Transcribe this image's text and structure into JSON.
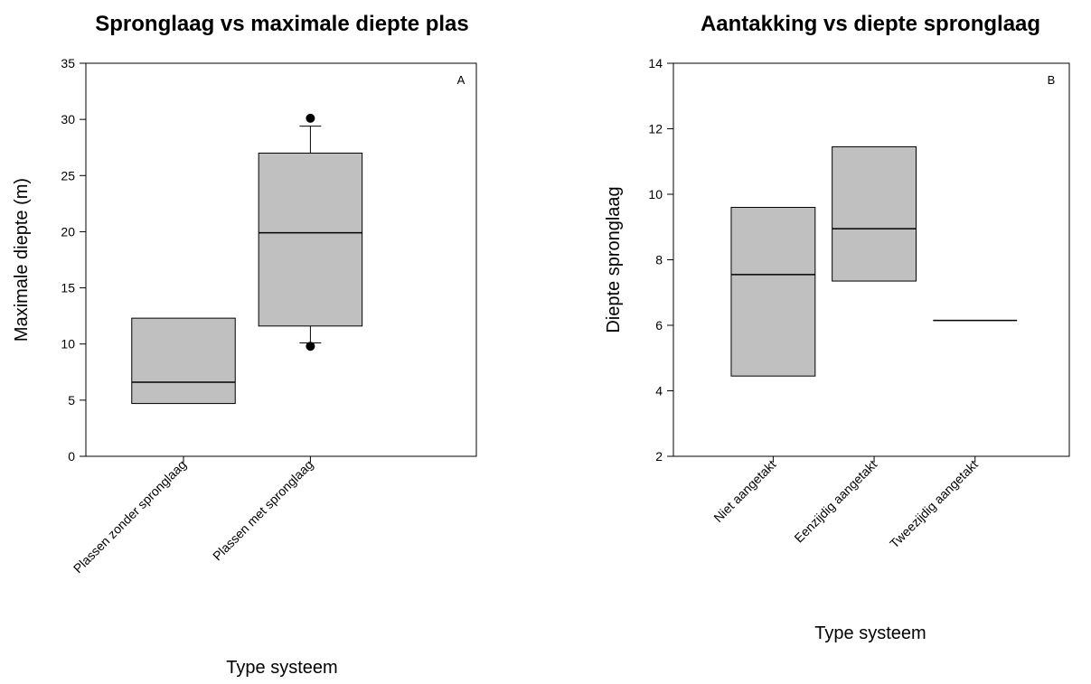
{
  "chart_data": [
    {
      "type": "box",
      "title": "Spronglaag vs maximale diepte plas",
      "panel_label": "A",
      "xlabel": "Type systeem",
      "ylabel": "Maximale diepte (m)",
      "ylim": [
        0,
        35
      ],
      "yticks": [
        0,
        5,
        10,
        15,
        20,
        25,
        30,
        35
      ],
      "grid": false,
      "box_color": "#c0c0c0",
      "categories": [
        "Plassen zonder spronglaag",
        "Plassen met spronglaag"
      ],
      "boxes": [
        {
          "q1": 4.7,
          "median": 6.6,
          "q3": 12.3
        },
        {
          "q1": 11.6,
          "median": 19.9,
          "q3": 27.0,
          "whisker_low": 10.1,
          "whisker_high": 29.4,
          "outliers": [
            9.8,
            30.1
          ]
        }
      ]
    },
    {
      "type": "box",
      "title": "Aantakking vs diepte spronglaag",
      "panel_label": "B",
      "xlabel": "Type systeem",
      "ylabel": "Diepte spronglaag",
      "ylim": [
        2,
        14
      ],
      "yticks": [
        2,
        4,
        6,
        8,
        10,
        12,
        14
      ],
      "grid": false,
      "box_color": "#c0c0c0",
      "categories": [
        "Niet aangetakt",
        "Eenzijdig aangetakt",
        "Tweezijdig aangetakt"
      ],
      "boxes": [
        {
          "q1": 4.45,
          "median": 7.55,
          "q3": 9.6
        },
        {
          "q1": 7.35,
          "median": 8.95,
          "q3": 11.45
        },
        {
          "q1": 6.15,
          "median": 6.15,
          "q3": 6.15
        }
      ]
    }
  ]
}
